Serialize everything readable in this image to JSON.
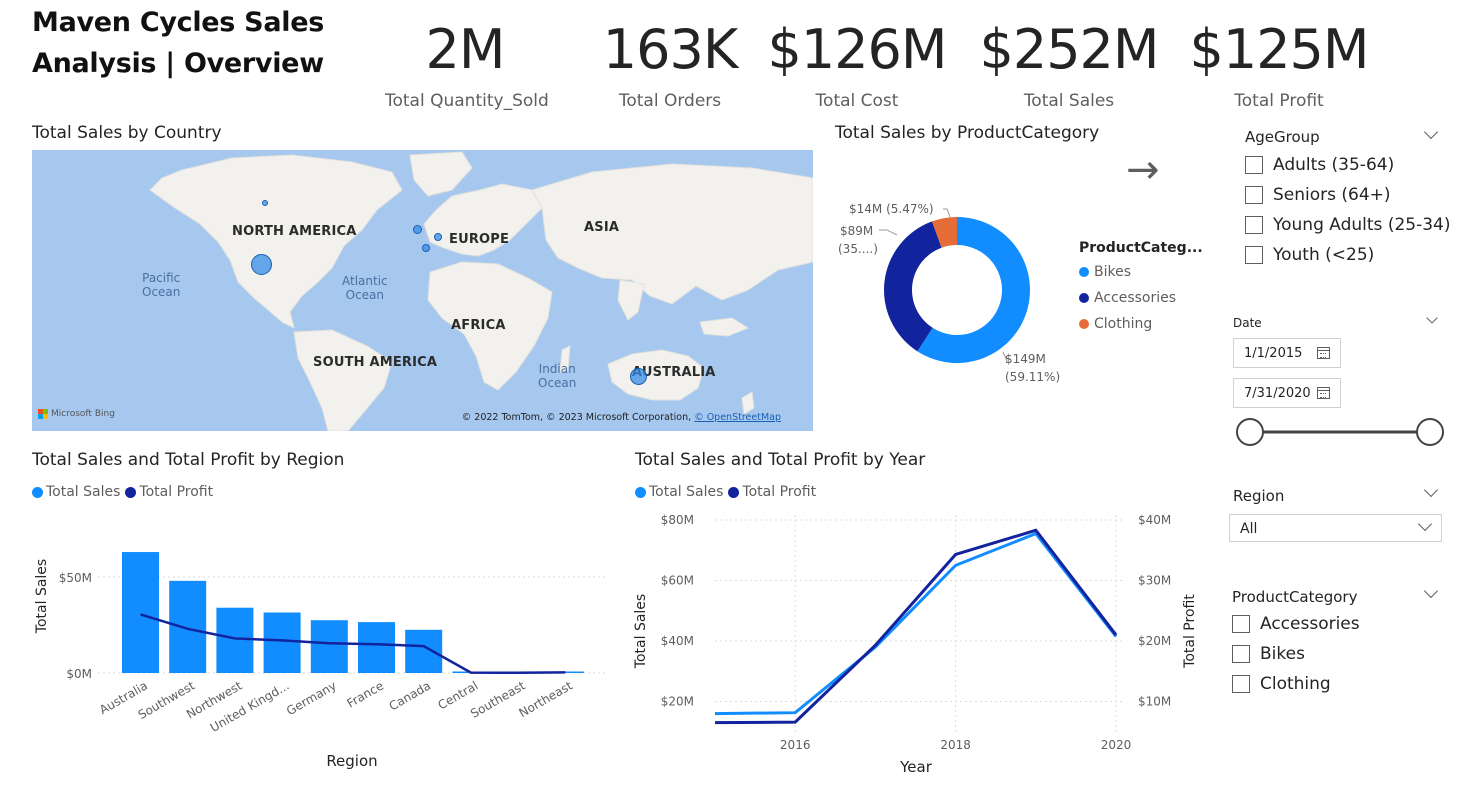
{
  "header": {
    "title_line1": "Maven Cycles Sales",
    "title_line2": "Analysis | Overview"
  },
  "kpis": [
    {
      "value": "2M",
      "label": "Total Quantity_Sold"
    },
    {
      "value": "163K",
      "label": "Total Orders"
    },
    {
      "value": "$126M",
      "label": "Total Cost"
    },
    {
      "value": "$252M",
      "label": "Total Sales"
    },
    {
      "value": "$125M",
      "label": "Total Profit"
    }
  ],
  "map_visual": {
    "title": "Total Sales by Country",
    "continents": [
      "NORTH AMERICA",
      "EUROPE",
      "ASIA",
      "AFRICA",
      "SOUTH AMERICA",
      "AUSTRALIA"
    ],
    "oceans": [
      "Pacific\nOcean",
      "Atlantic\nOcean",
      "Indian\nOcean"
    ],
    "bing_label": "Microsoft Bing",
    "copyright": "© 2022 TomTom, © 2023 Microsoft Corporation, ",
    "copyright_link": "© OpenStreetMap",
    "bubble_color": "#3b8ee6"
  },
  "donut_visual": {
    "title": "Total Sales by ProductCategory",
    "legend_title": "ProductCateg...",
    "legend": [
      {
        "name": "Bikes",
        "color": "#118dff"
      },
      {
        "name": "Accessories",
        "color": "#12239e"
      },
      {
        "name": "Clothing",
        "color": "#e66c37"
      }
    ],
    "label_bikes_1": "$149M",
    "label_bikes_2": "(59.11%)",
    "label_acc_1": "$89M",
    "label_acc_2": "(35....)",
    "label_cloth": "$14M (5.47%)"
  },
  "region_visual": {
    "title": "Total Sales and Total Profit by Region",
    "legend": [
      {
        "name": "Total Sales",
        "color": "#118dff"
      },
      {
        "name": "Total Profit",
        "color": "#12239e"
      }
    ],
    "xlabel": "Region",
    "ylabel": "Total Sales",
    "y_ticks": [
      "$50M",
      "$0M"
    ]
  },
  "year_visual": {
    "title": "Total Sales and Total Profit by Year",
    "legend": [
      {
        "name": "Total Sales",
        "color": "#118dff"
      },
      {
        "name": "Total Profit",
        "color": "#12239e"
      }
    ],
    "xlabel": "Year",
    "ylabel_left": "Total Sales",
    "ylabel_right": "Total Profit",
    "y_ticks_left": [
      "$80M",
      "$60M",
      "$40M",
      "$20M"
    ],
    "y_ticks_right": [
      "$40M",
      "$30M",
      "$20M",
      "$10M"
    ],
    "x_ticks": [
      "2016",
      "2018",
      "2020"
    ]
  },
  "slicers": {
    "age_group": {
      "title": "AgeGroup",
      "options": [
        "Adults (35-64)",
        "Seniors (64+)",
        "Young Adults (25-34)",
        "Youth (<25)"
      ]
    },
    "date": {
      "title": "Date",
      "start": "1/1/2015",
      "end": "7/31/2020",
      "slider_position": {
        "start": 0,
        "end": 1
      }
    },
    "region": {
      "title": "Region",
      "selected": "All"
    },
    "product_category": {
      "title": "ProductCategory",
      "options": [
        "Accessories",
        "Bikes",
        "Clothing"
      ]
    }
  },
  "chart_data": [
    {
      "type": "pie",
      "title": "Total Sales by ProductCategory",
      "categories": [
        "Bikes",
        "Accessories",
        "Clothing"
      ],
      "values": [
        149,
        89,
        14
      ],
      "percent": [
        59.11,
        35.42,
        5.47
      ],
      "unit": "$M",
      "legend_position": "right"
    },
    {
      "type": "bar",
      "title": "Total Sales and Total Profit by Region",
      "categories": [
        "Australia",
        "Southwest",
        "Northwest",
        "United Kingd...",
        "Germany",
        "France",
        "Canada",
        "Central",
        "Southeast",
        "Northeast"
      ],
      "series": [
        {
          "name": "Total Sales",
          "type": "bar",
          "values": [
            63,
            48,
            34,
            31.5,
            27.5,
            26.5,
            22.5,
            0.3,
            0.2,
            0.6
          ]
        },
        {
          "name": "Total Profit",
          "type": "line",
          "values": [
            30.5,
            23,
            18,
            17,
            15.5,
            15,
            14,
            0.2,
            0.1,
            0.3
          ]
        }
      ],
      "xlabel": "Region",
      "ylabel": "Total Sales",
      "ylim": [
        0,
        70
      ],
      "legend_position": "top-left",
      "grid": true
    },
    {
      "type": "line",
      "title": "Total Sales and Total Profit by Year",
      "x": [
        2015,
        2016,
        2017,
        2018,
        2019,
        2020
      ],
      "series": [
        {
          "name": "Total Sales",
          "axis": "left",
          "values": [
            16,
            16.3,
            38,
            65,
            75.5,
            41.5
          ]
        },
        {
          "name": "Total Profit",
          "axis": "right",
          "values": [
            6.5,
            6.6,
            19.3,
            34.3,
            38.3,
            21
          ]
        }
      ],
      "xlabel": "Year",
      "ylabel_left": "Total Sales",
      "ylabel_right": "Total Profit",
      "ylim_left": [
        10,
        80
      ],
      "ylim_right": [
        5,
        40
      ],
      "legend_position": "top-left",
      "grid": true
    }
  ]
}
